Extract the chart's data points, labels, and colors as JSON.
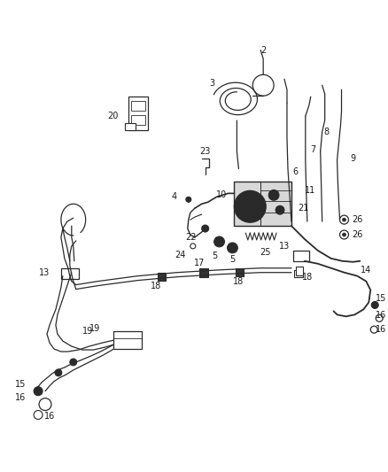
{
  "background_color": "#ffffff",
  "line_color": "#2a2a2a",
  "fig_width": 4.38,
  "fig_height": 5.33,
  "dpi": 100,
  "lw_thin": 0.9,
  "lw_med": 1.3,
  "lw_thick": 1.8,
  "fs": 7.0
}
